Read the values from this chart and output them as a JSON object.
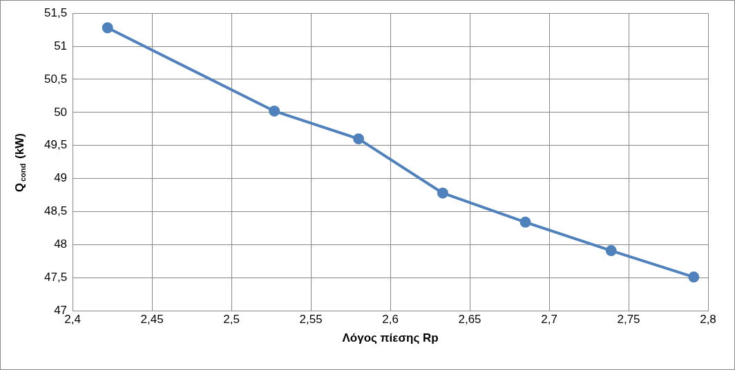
{
  "chart_data": {
    "type": "line",
    "xlabel": "Λόγος πίεσης Rp",
    "ylabel": "Q$_{cond}$ (kW)",
    "x": [
      2.422,
      2.527,
      2.58,
      2.633,
      2.685,
      2.739,
      2.791
    ],
    "series": [
      {
        "color": "#4f81bd",
        "values": [
          51.28,
          50.02,
          49.6,
          48.78,
          48.34,
          47.91,
          47.51
        ]
      }
    ],
    "xlim": [
      2.4,
      2.8
    ],
    "xticks": [
      {
        "value": 2.4,
        "label": "2,4"
      },
      {
        "value": 2.45,
        "label": "2,45"
      },
      {
        "value": 2.5,
        "label": "2,5"
      },
      {
        "value": 2.55,
        "label": "2,55"
      },
      {
        "value": 2.6,
        "label": "2,6"
      },
      {
        "value": 2.65,
        "label": "2,65"
      },
      {
        "value": 2.7,
        "label": "2,7"
      },
      {
        "value": 2.75,
        "label": "2,75"
      },
      {
        "value": 2.8,
        "label": "2,8"
      }
    ],
    "ylim": [
      47,
      51.5
    ],
    "yticks": [
      47,
      {
        "value": 47.5,
        "label": "47,5"
      },
      48,
      {
        "value": 48.5,
        "label": "48,5"
      },
      49,
      {
        "value": 49.5,
        "label": "49,5"
      },
      50,
      {
        "value": 50.5,
        "label": "50,5"
      },
      51,
      {
        "value": 51.5,
        "label": "51,5"
      }
    ],
    "grid": true,
    "legend": false,
    "marker": "circle",
    "line_style": "solid"
  }
}
